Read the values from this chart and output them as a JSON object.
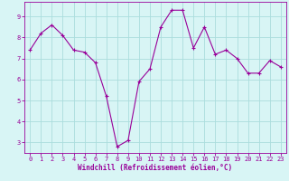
{
  "x": [
    0,
    1,
    2,
    3,
    4,
    5,
    6,
    7,
    8,
    9,
    10,
    11,
    12,
    13,
    14,
    15,
    16,
    17,
    18,
    19,
    20,
    21,
    22,
    23
  ],
  "y": [
    7.4,
    8.2,
    8.6,
    8.1,
    7.4,
    7.3,
    6.8,
    5.2,
    2.8,
    3.1,
    5.9,
    6.5,
    8.5,
    9.3,
    9.3,
    7.5,
    8.5,
    7.2,
    7.4,
    7.0,
    6.3,
    6.3,
    6.9,
    6.6
  ],
  "line_color": "#990099",
  "marker": "+",
  "bg_color": "#d8f5f5",
  "grid_color": "#aadddd",
  "axis_label_color": "#990099",
  "xlabel": "Windchill (Refroidissement éolien,°C)",
  "ylim": [
    2.5,
    9.7
  ],
  "xlim": [
    -0.5,
    23.5
  ],
  "yticks": [
    3,
    4,
    5,
    6,
    7,
    8,
    9
  ],
  "xticks": [
    0,
    1,
    2,
    3,
    4,
    5,
    6,
    7,
    8,
    9,
    10,
    11,
    12,
    13,
    14,
    15,
    16,
    17,
    18,
    19,
    20,
    21,
    22,
    23
  ],
  "tick_label_color": "#990099",
  "spine_color": "#990099",
  "xlabel_fontsize": 5.5,
  "tick_fontsize": 5.0,
  "line_width": 0.8,
  "marker_size": 3.0
}
